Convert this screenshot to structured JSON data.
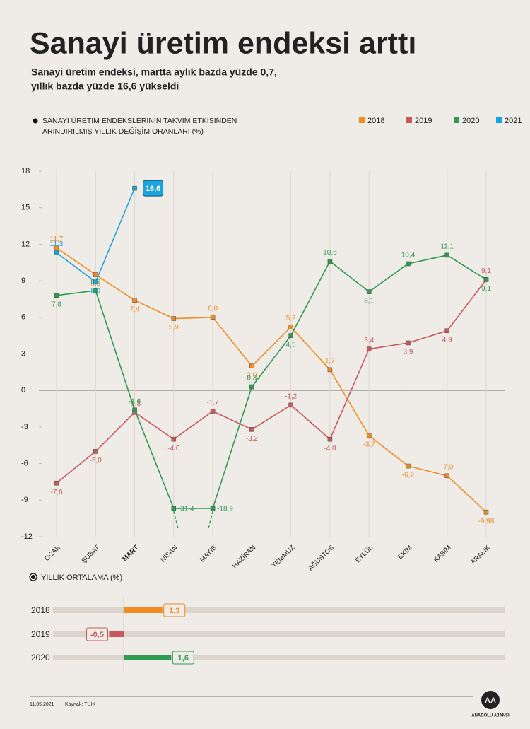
{
  "header": {
    "title": "Sanayi üretim endeksi arttı",
    "subtitle": [
      "Sanayi üretim endeksi, martta aylık bazda yüzde 0,7,",
      "yıllık bazda yüzde 16,6 yükseldi"
    ]
  },
  "chart_data": [
    {
      "type": "line",
      "note": [
        "SANAYİ ÜRETİM ENDEKSLERİNİN TAKVİM ETKİSİNDEN",
        "ARINDIRILMIŞ YILLIK DEĞİŞİM ORANLARI (%)"
      ],
      "categories": [
        "OCAK",
        "ŞUBAT",
        "MART",
        "NİSAN",
        "MAYIS",
        "HAZİRAN",
        "TEMMUZ",
        "AĞUSTOS",
        "EYLÜL",
        "EKİM",
        "KASIM",
        "ARALIK"
      ],
      "ylim": [
        -12,
        18
      ],
      "yticks": [
        18,
        15,
        12,
        9,
        6,
        3,
        0,
        -3,
        -6,
        -9,
        -12
      ],
      "grid": true,
      "legend": "top-right",
      "series": [
        {
          "name": "2018",
          "color": "#ef8c22",
          "values": [
            11.7,
            9.5,
            7.4,
            5.9,
            6.0,
            2.0,
            5.2,
            1.7,
            -3.7,
            -6.2,
            -7.0,
            -9.98
          ],
          "value_labels": [
            "11,7",
            "9,5",
            "7,4",
            "5,9",
            "6,0",
            "2,0",
            "5,2",
            "1,7",
            "-3,7",
            "-6,2",
            "-7,0",
            "-9,98"
          ]
        },
        {
          "name": "2019",
          "color": "#c7595c",
          "values": [
            -7.6,
            -5.0,
            -1.8,
            -4.0,
            -1.7,
            -3.2,
            -1.2,
            -4.0,
            3.4,
            3.9,
            4.9,
            9.1
          ],
          "value_labels": [
            "-7,6",
            "-5,0",
            "-1,8",
            "-4,0",
            "-1,7",
            "-3,2",
            "-1,2",
            "-4,0",
            "3,4",
            "3,9",
            "4,9",
            "9,1"
          ]
        },
        {
          "name": "2020",
          "color": "#2e9a52",
          "values": [
            7.8,
            8.2,
            -1.6,
            -31.4,
            -18.9,
            0.3,
            4.5,
            10.6,
            8.1,
            10.4,
            11.1,
            9.1
          ],
          "value_labels": [
            "7,8",
            "8,2",
            "-1,6",
            "-31,4",
            "-18,9",
            "0,3",
            "4,5",
            "10,6",
            "8,1",
            "10,4",
            "11,1",
            "9,1"
          ]
        },
        {
          "name": "2021",
          "color": "#1aa3dc",
          "values": [
            11.3,
            8.9,
            16.6,
            null,
            null,
            null,
            null,
            null,
            null,
            null,
            null,
            null
          ],
          "value_labels": [
            "11,3",
            "8,9",
            "16,6",
            null,
            null,
            null,
            null,
            null,
            null,
            null,
            null,
            null
          ]
        }
      ]
    },
    {
      "type": "hbar",
      "title": "YILLIK ORTALAMA (%)",
      "categories": [
        "2018",
        "2019",
        "2020"
      ],
      "values": [
        1.3,
        -0.5,
        1.6
      ],
      "value_labels": [
        "1,3",
        "-0,5",
        "1,6"
      ],
      "colors": [
        "#ef8c22",
        "#c7595c",
        "#2e9a52"
      ],
      "xlim": [
        -2.4,
        12.9
      ]
    }
  ],
  "footer": {
    "date": "11.05.2021",
    "source": "Kaynak: TÜİK",
    "logo": "AA",
    "agency": "ANADOLU AJANSI"
  }
}
